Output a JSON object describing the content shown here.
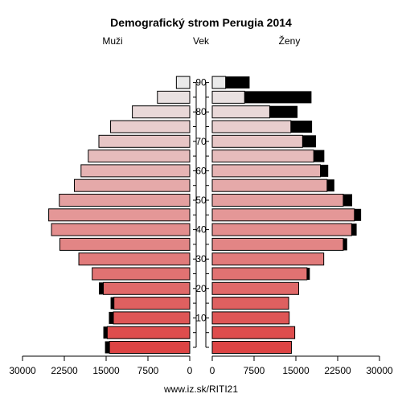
{
  "chart_data": {
    "type": "bar",
    "title": "Demografický strom Perugia 2014",
    "left_label": "Muži",
    "center_label": "Vek",
    "right_label": "Ženy",
    "footer": "www.iz.sk/RITI21",
    "age_ticks": [
      "10",
      "20",
      "30",
      "40",
      "50",
      "60",
      "70",
      "80",
      "90"
    ],
    "x_ticks_left": [
      "30000",
      "22500",
      "15000",
      "7500",
      "0"
    ],
    "x_ticks_right": [
      "0",
      "7500",
      "15000",
      "22500",
      "30000"
    ],
    "xlim": [
      0,
      30000
    ],
    "age_groups": [
      "0-4",
      "5-9",
      "10-14",
      "15-19",
      "20-24",
      "25-29",
      "30-34",
      "35-39",
      "40-44",
      "45-49",
      "50-54",
      "55-59",
      "60-64",
      "65-69",
      "70-74",
      "75-79",
      "80-84",
      "85-89",
      "90+"
    ],
    "series": [
      {
        "name": "Muži",
        "values": [
          14400,
          14800,
          13700,
          13600,
          15500,
          17500,
          19900,
          23300,
          24800,
          25300,
          23400,
          20700,
          19500,
          18200,
          16300,
          14200,
          10300,
          5800,
          2400
        ],
        "extra": [
          800,
          700,
          800,
          600,
          800,
          0,
          0,
          0,
          0,
          0,
          0,
          0,
          0,
          0,
          0,
          0,
          0,
          0,
          0
        ]
      },
      {
        "name": "Ženy",
        "values": [
          14200,
          14800,
          13800,
          13700,
          15500,
          17000,
          20000,
          23500,
          25000,
          25500,
          23500,
          20600,
          19400,
          18200,
          16200,
          14100,
          10300,
          5800,
          2400
        ],
        "extra": [
          0,
          0,
          0,
          0,
          0,
          500,
          0,
          700,
          900,
          1200,
          1600,
          1300,
          1400,
          1900,
          2400,
          3800,
          5000,
          12000,
          4300
        ]
      }
    ],
    "colors": {
      "young": "#dd4444",
      "old": "#eaeaea",
      "extra": "#000000",
      "border": "#000000"
    }
  }
}
